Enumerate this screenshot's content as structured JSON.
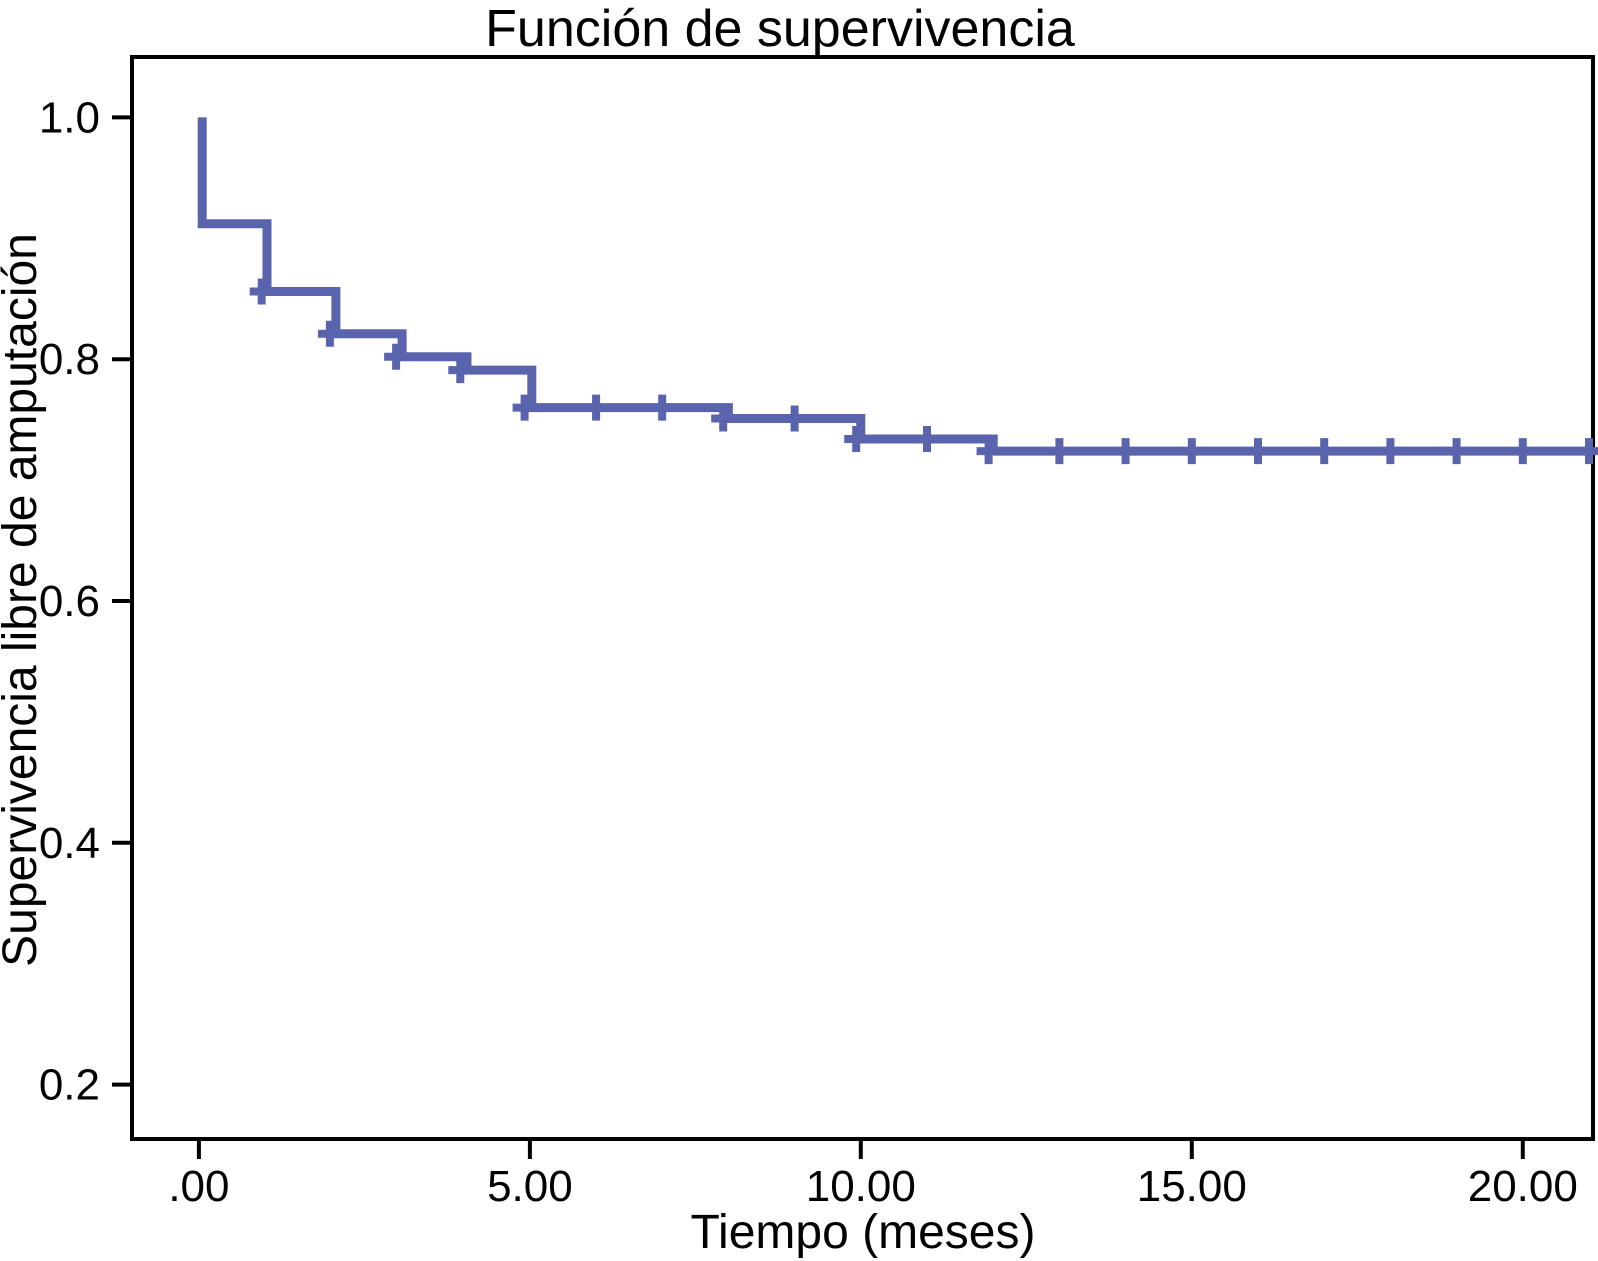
{
  "page": {
    "background_color": "#ffffff"
  },
  "chart_data": {
    "type": "line",
    "subtype": "kaplan-meier-step",
    "title": "Función de supervivencia",
    "xlabel": "Tiempo (meses)",
    "ylabel": "Supervivencia libre de amputación",
    "legend": "none",
    "grid": "off",
    "line_color": "#5A64AC",
    "axis_color": "#000000",
    "xlim": [
      -1.01,
      21.06
    ],
    "ylim": [
      0.155,
      1.05
    ],
    "x_ticks": [
      {
        "v": 0,
        "label": ".00"
      },
      {
        "v": 5,
        "label": "5.00"
      },
      {
        "v": 10,
        "label": "10.00"
      },
      {
        "v": 15,
        "label": "15.00"
      },
      {
        "v": 20,
        "label": "20.00"
      }
    ],
    "y_ticks": [
      {
        "v": 1.0,
        "label": "1.0"
      },
      {
        "v": 0.8,
        "label": "0.8"
      },
      {
        "v": 0.6,
        "label": "0.6"
      },
      {
        "v": 0.4,
        "label": "0.4"
      },
      {
        "v": 0.2,
        "label": "0.2"
      }
    ],
    "series": [
      {
        "name": "Función de supervivencia",
        "start": {
          "t": 0.05,
          "s": 1.0
        },
        "steps": [
          {
            "t": 0.05,
            "s_after": 0.912
          },
          {
            "t": 1.03,
            "s_after": 0.856
          },
          {
            "t": 2.07,
            "s_after": 0.821
          },
          {
            "t": 3.07,
            "s_after": 0.802
          },
          {
            "t": 4.05,
            "s_after": 0.791
          },
          {
            "t": 5.03,
            "s_after": 0.76
          },
          {
            "t": 8.0,
            "s_after": 0.751
          },
          {
            "t": 10.0,
            "s_after": 0.734
          },
          {
            "t": 12.0,
            "s_after": 0.724
          }
        ],
        "end_t": 21.06,
        "censored": [
          {
            "t": 0.95,
            "s": 0.856
          },
          {
            "t": 1.98,
            "s": 0.821
          },
          {
            "t": 2.98,
            "s": 0.802
          },
          {
            "t": 3.95,
            "s": 0.791
          },
          {
            "t": 4.92,
            "s": 0.76
          },
          {
            "t": 6.0,
            "s": 0.76
          },
          {
            "t": 7.0,
            "s": 0.76
          },
          {
            "t": 7.92,
            "s": 0.751
          },
          {
            "t": 9.0,
            "s": 0.751
          },
          {
            "t": 9.93,
            "s": 0.734
          },
          {
            "t": 11.0,
            "s": 0.734
          },
          {
            "t": 11.93,
            "s": 0.724
          },
          {
            "t": 13.0,
            "s": 0.724
          },
          {
            "t": 14.0,
            "s": 0.724
          },
          {
            "t": 15.0,
            "s": 0.724
          },
          {
            "t": 16.0,
            "s": 0.724
          },
          {
            "t": 17.0,
            "s": 0.724
          },
          {
            "t": 18.0,
            "s": 0.724
          },
          {
            "t": 19.0,
            "s": 0.724
          },
          {
            "t": 20.0,
            "s": 0.724
          },
          {
            "t": 21.0,
            "s": 0.724
          }
        ]
      }
    ]
  }
}
